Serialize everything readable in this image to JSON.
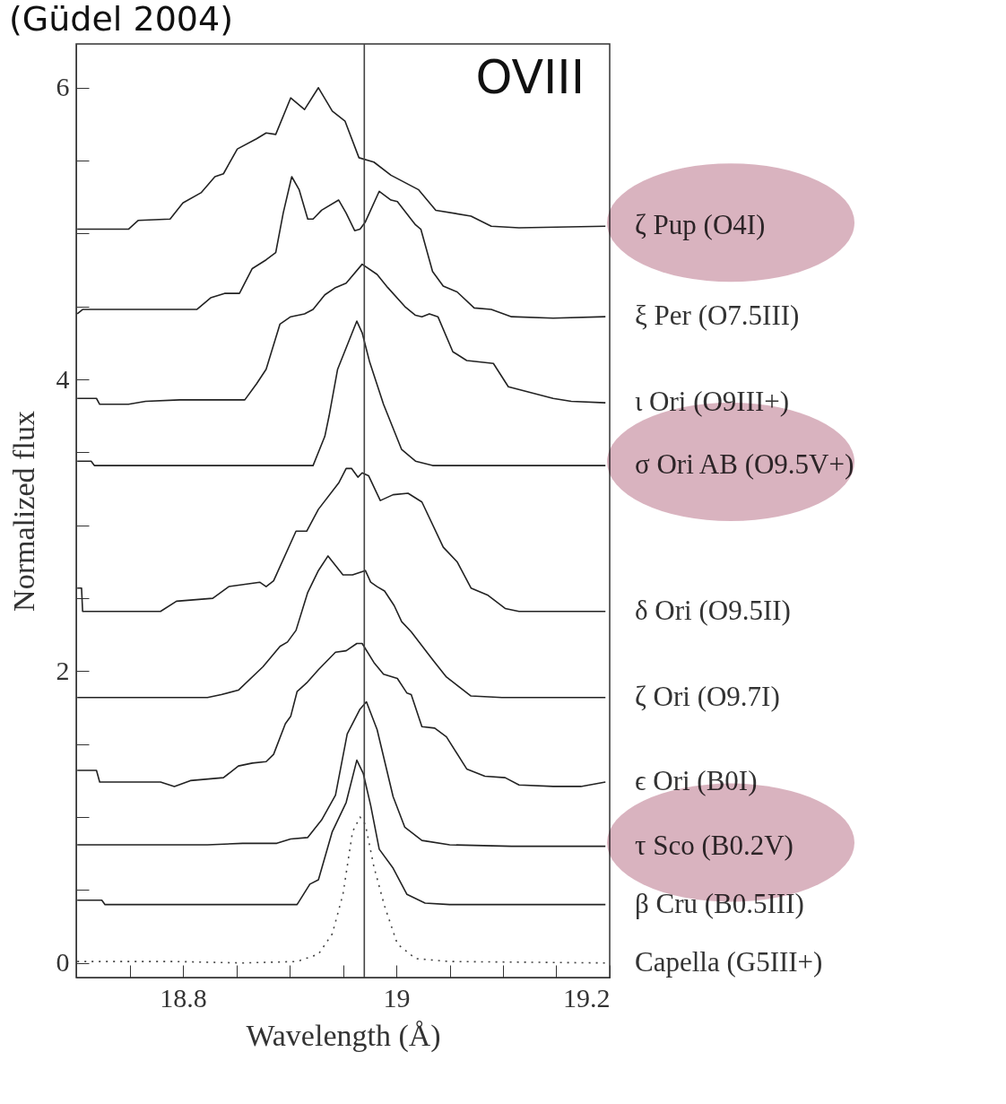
{
  "chart_data": {
    "type": "line",
    "title": "(Güdel 2004)",
    "xlabel": "Wavelength (Å)",
    "ylabel": "Normalized flux",
    "annotations": [
      "OVIII"
    ],
    "xlim": [
      18.7,
      19.2
    ],
    "ylim": [
      -0.1,
      6.3
    ],
    "xticks": [
      {
        "value": 18.75,
        "label": null
      },
      18.8,
      {
        "value": 18.85,
        "label": null
      },
      {
        "value": 18.9,
        "label": null
      },
      {
        "value": 18.95,
        "label": null
      },
      19,
      {
        "value": 19.05,
        "label": null
      },
      {
        "value": 19.1,
        "label": null
      },
      {
        "value": 19.15,
        "label": null
      },
      19.2
    ],
    "yticks": [
      0,
      {
        "value": 0.5,
        "label": null
      },
      {
        "value": 1,
        "label": null
      },
      {
        "value": 1.5,
        "label": null
      },
      2,
      {
        "value": 2.5,
        "label": null
      },
      {
        "value": 3,
        "label": null
      },
      {
        "value": 3.5,
        "label": null
      },
      4,
      {
        "value": 4.5,
        "label": null
      },
      {
        "value": 5,
        "label": null
      },
      {
        "value": 5.5,
        "label": null
      },
      6
    ],
    "grid": false,
    "line_style": "solid",
    "marker": "none",
    "ref_lines": [
      {
        "axis": "x",
        "value": 18.97,
        "color": "#444444"
      }
    ],
    "series": [
      {
        "name": "ζ Pup (O4I)",
        "color": "#222222",
        "x": [
          18.701,
          18.749,
          18.758,
          18.788,
          18.8,
          18.817,
          18.83,
          18.838,
          18.851,
          18.869,
          18.878,
          18.887,
          18.901,
          18.914,
          18.927,
          18.94,
          18.952,
          18.965,
          18.979,
          18.995,
          19.021,
          19.037,
          19.07,
          19.089,
          19.115,
          19.196
        ],
        "values": [
          5.03,
          5.03,
          5.09,
          5.1,
          5.21,
          5.28,
          5.39,
          5.41,
          5.58,
          5.65,
          5.69,
          5.68,
          5.93,
          5.85,
          6.0,
          5.84,
          5.77,
          5.52,
          5.49,
          5.4,
          5.3,
          5.16,
          5.12,
          5.05,
          5.04,
          5.05
        ]
      },
      {
        "name": "ξ Per (O7.5III)",
        "color": "#222222",
        "x": [
          18.701,
          18.706,
          18.813,
          18.826,
          18.839,
          18.853,
          18.865,
          18.878,
          18.887,
          18.894,
          18.902,
          18.909,
          18.917,
          18.922,
          18.93,
          18.946,
          18.953,
          18.961,
          18.966,
          18.971,
          18.984,
          18.995,
          19.001,
          19.018,
          19.023,
          19.034,
          19.044,
          19.057,
          19.073,
          19.089,
          19.108,
          19.147,
          19.196
        ],
        "values": [
          4.45,
          4.48,
          4.48,
          4.56,
          4.59,
          4.59,
          4.76,
          4.82,
          4.87,
          5.14,
          5.39,
          5.3,
          5.1,
          5.1,
          5.16,
          5.23,
          5.14,
          5.02,
          5.03,
          5.08,
          5.29,
          5.23,
          5.22,
          5.06,
          5.03,
          4.74,
          4.64,
          4.6,
          4.49,
          4.48,
          4.43,
          4.42,
          4.43
        ]
      },
      {
        "name": "ι Ori (O9III+)",
        "color": "#222222",
        "x": [
          18.701,
          18.719,
          18.722,
          18.749,
          18.765,
          18.797,
          18.858,
          18.869,
          18.878,
          18.891,
          18.901,
          18.914,
          18.922,
          18.933,
          18.943,
          18.953,
          18.968,
          18.982,
          18.992,
          19.008,
          19.018,
          19.024,
          19.031,
          19.039,
          19.053,
          19.066,
          19.091,
          19.105,
          19.147,
          19.164,
          19.196
        ],
        "values": [
          3.87,
          3.87,
          3.83,
          3.83,
          3.85,
          3.86,
          3.86,
          3.97,
          4.07,
          4.38,
          4.43,
          4.45,
          4.48,
          4.58,
          4.63,
          4.66,
          4.79,
          4.72,
          4.63,
          4.5,
          4.44,
          4.43,
          4.45,
          4.43,
          4.19,
          4.13,
          4.11,
          3.95,
          3.87,
          3.85,
          3.84
        ]
      },
      {
        "name": "σ Ori AB (O9.5V+)",
        "color": "#222222",
        "x": [
          18.701,
          18.714,
          18.717,
          18.922,
          18.933,
          18.937,
          18.945,
          18.963,
          18.968,
          18.975,
          18.988,
          19.005,
          19.018,
          19.034,
          19.196
        ],
        "values": [
          3.44,
          3.44,
          3.41,
          3.41,
          3.61,
          3.75,
          4.07,
          4.4,
          4.32,
          4.12,
          3.83,
          3.52,
          3.44,
          3.41,
          3.41
        ]
      },
      {
        "name": "δ Ori (O9.5II)",
        "color": "#222222",
        "x": [
          18.701,
          18.705,
          18.706,
          18.779,
          18.794,
          18.828,
          18.843,
          18.872,
          18.878,
          18.885,
          18.906,
          18.916,
          18.927,
          18.946,
          18.953,
          18.958,
          18.964,
          18.968,
          18.974,
          18.985,
          18.997,
          19.011,
          19.024,
          19.044,
          19.057,
          19.07,
          19.086,
          19.102,
          19.115,
          19.196
        ],
        "values": [
          2.57,
          2.57,
          2.41,
          2.41,
          2.48,
          2.5,
          2.58,
          2.61,
          2.58,
          2.62,
          2.96,
          2.96,
          3.11,
          3.29,
          3.39,
          3.39,
          3.33,
          3.36,
          3.34,
          3.17,
          3.21,
          3.22,
          3.16,
          2.85,
          2.75,
          2.57,
          2.52,
          2.43,
          2.41,
          2.41
        ]
      },
      {
        "name": "ζ Ori (O9.7I)",
        "color": "#222222",
        "x": [
          18.701,
          18.823,
          18.836,
          18.852,
          18.875,
          18.891,
          18.898,
          18.906,
          18.917,
          18.927,
          18.936,
          18.95,
          18.959,
          18.971,
          18.976,
          18.982,
          18.989,
          18.998,
          19.005,
          19.014,
          19.034,
          19.047,
          19.07,
          19.099,
          19.196
        ],
        "values": [
          1.82,
          1.82,
          1.84,
          1.87,
          2.03,
          2.17,
          2.2,
          2.28,
          2.54,
          2.69,
          2.79,
          2.66,
          2.66,
          2.69,
          2.61,
          2.58,
          2.55,
          2.45,
          2.34,
          2.27,
          2.08,
          1.96,
          1.83,
          1.82,
          1.82
        ]
      },
      {
        "name": "ϵ Ori (B0I)",
        "color": "#222222",
        "x": [
          18.701,
          18.719,
          18.722,
          18.779,
          18.792,
          18.807,
          18.838,
          18.852,
          18.865,
          18.878,
          18.885,
          18.896,
          18.901,
          18.907,
          18.916,
          18.927,
          18.943,
          18.953,
          18.963,
          18.968,
          18.979,
          18.988,
          19.001,
          19.01,
          19.014,
          19.024,
          19.036,
          19.047,
          19.066,
          19.083,
          19.102,
          19.115,
          19.147,
          19.173,
          19.196
        ],
        "values": [
          1.32,
          1.32,
          1.24,
          1.24,
          1.21,
          1.25,
          1.27,
          1.35,
          1.37,
          1.38,
          1.43,
          1.64,
          1.69,
          1.86,
          1.92,
          2.01,
          2.13,
          2.14,
          2.19,
          2.19,
          2.06,
          1.98,
          1.95,
          1.85,
          1.84,
          1.62,
          1.61,
          1.55,
          1.33,
          1.28,
          1.27,
          1.22,
          1.21,
          1.21,
          1.24
        ]
      },
      {
        "name": "τ Sco (B0.2V)",
        "color": "#222222",
        "x": [
          18.701,
          18.823,
          18.856,
          18.888,
          18.901,
          18.917,
          18.93,
          18.943,
          18.954,
          18.966,
          18.972,
          18.982,
          18.997,
          19.008,
          19.024,
          19.05,
          19.108,
          19.196
        ],
        "values": [
          0.81,
          0.81,
          0.82,
          0.82,
          0.85,
          0.86,
          0.98,
          1.15,
          1.57,
          1.74,
          1.79,
          1.6,
          1.14,
          0.93,
          0.84,
          0.81,
          0.8,
          0.8
        ]
      },
      {
        "name": "β Cru (B0.5III)",
        "color": "#222222",
        "x": [
          18.701,
          18.724,
          18.727,
          18.907,
          18.919,
          18.927,
          18.94,
          18.953,
          18.963,
          18.969,
          18.976,
          18.984,
          18.997,
          19.01,
          19.027,
          19.05,
          19.196
        ],
        "values": [
          0.43,
          0.43,
          0.4,
          0.4,
          0.54,
          0.57,
          0.9,
          1.1,
          1.39,
          1.3,
          1.08,
          0.78,
          0.65,
          0.47,
          0.41,
          0.4,
          0.4
        ]
      },
      {
        "name": "Capella (G5III+)",
        "color": "#444444",
        "line_style": "dotted",
        "x": [
          18.701,
          18.791,
          18.856,
          18.907,
          18.927,
          18.94,
          18.95,
          18.959,
          18.966,
          18.971,
          18.979,
          18.989,
          19.001,
          19.018,
          19.05,
          19.196
        ],
        "values": [
          0.01,
          0.01,
          0.0,
          0.01,
          0.06,
          0.2,
          0.47,
          0.9,
          1.0,
          0.95,
          0.66,
          0.39,
          0.13,
          0.03,
          0.01,
          0.0
        ]
      }
    ]
  }
}
